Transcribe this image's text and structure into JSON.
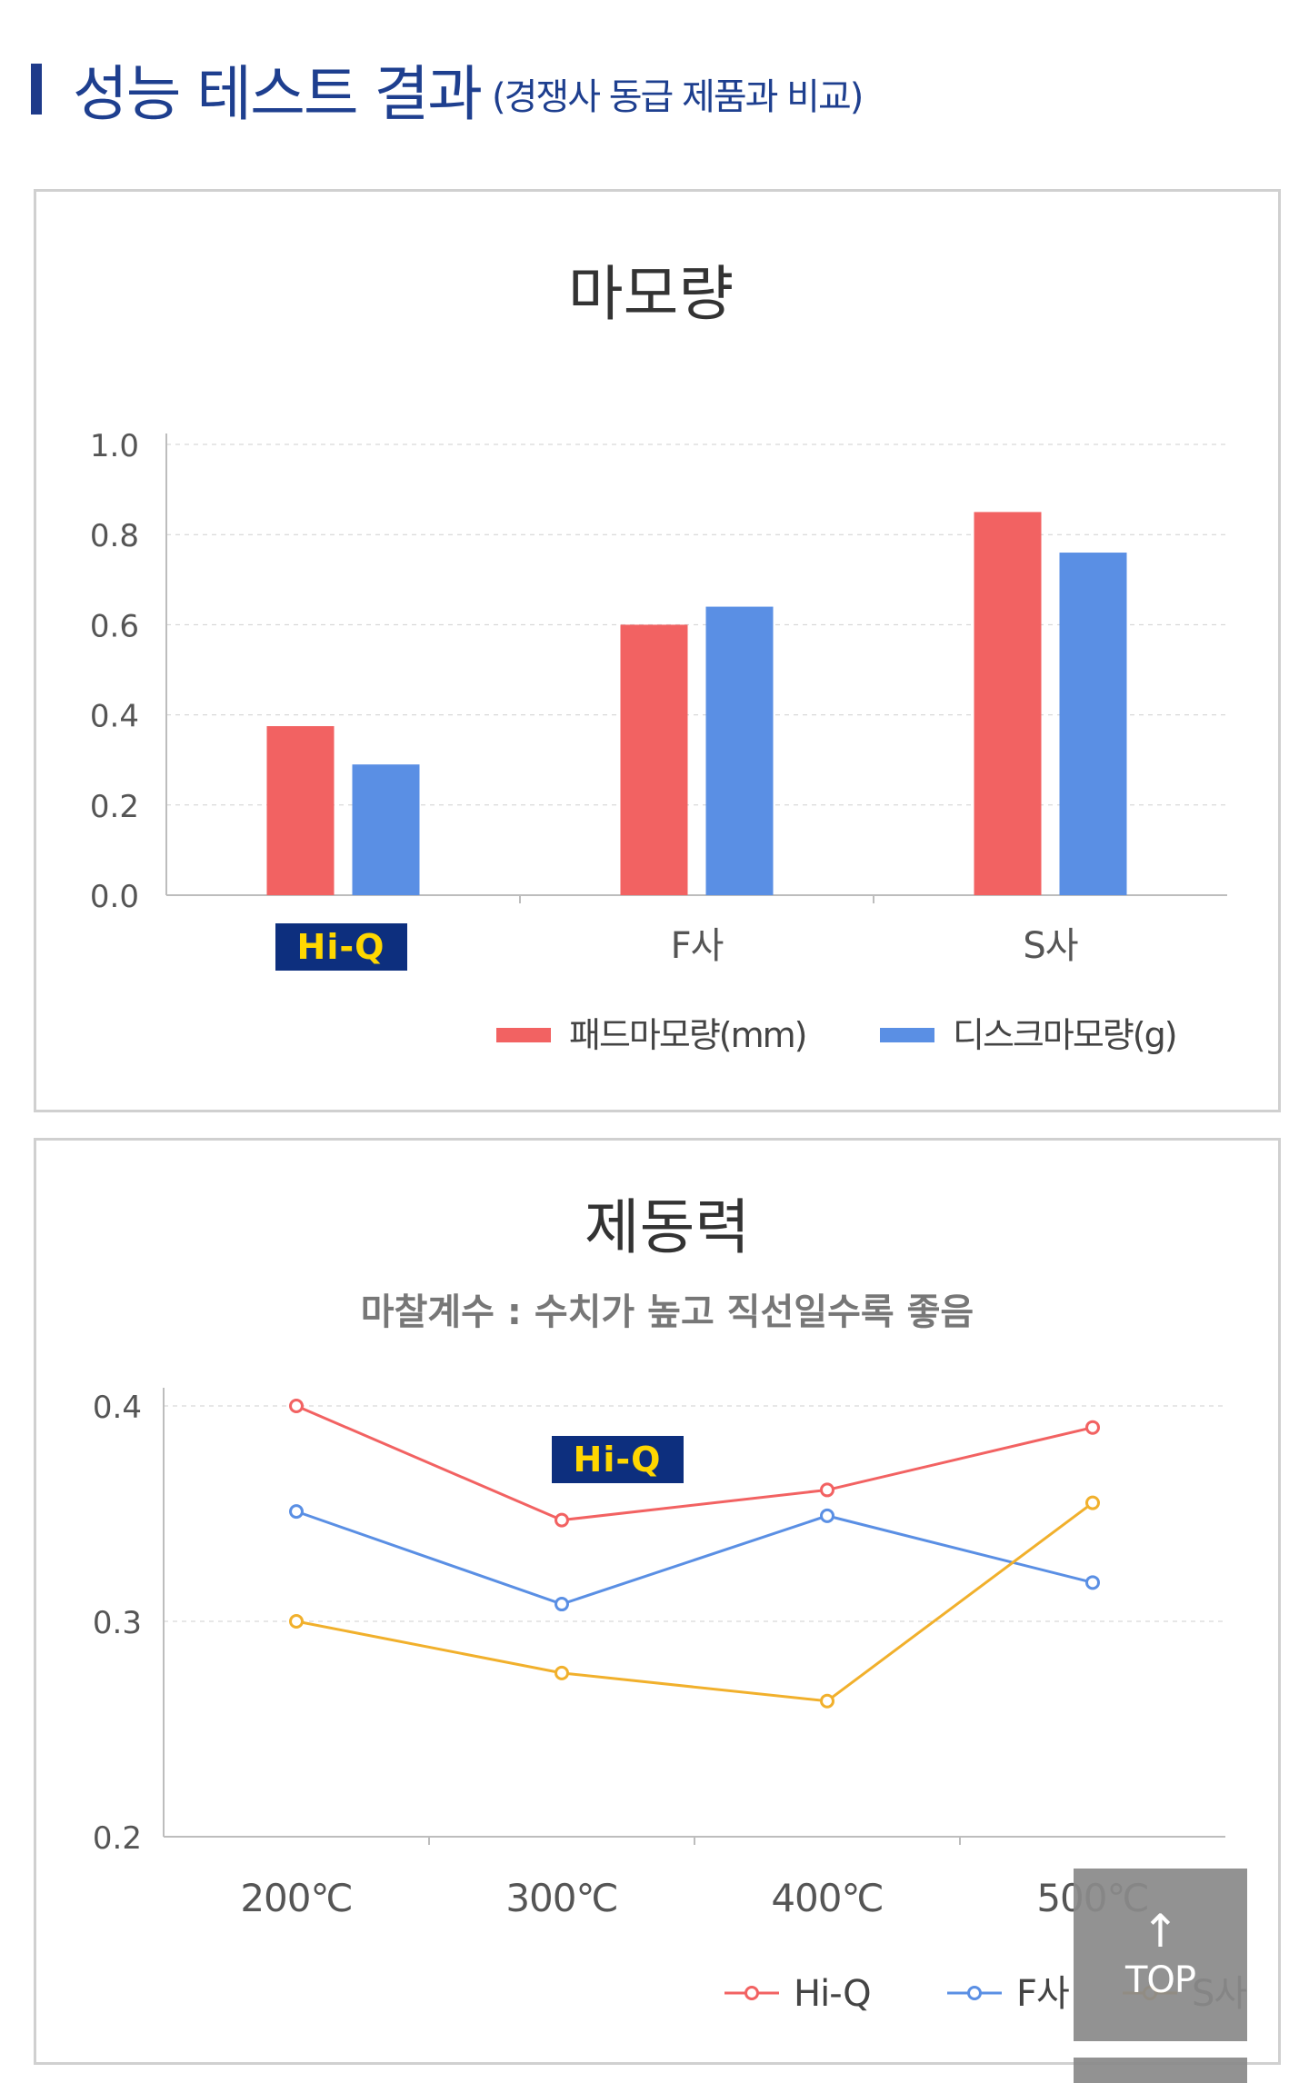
{
  "section": {
    "title": "성능 테스트 결과",
    "subtitle": "(경쟁사 동급 제품과 비교)"
  },
  "wear_chart": {
    "title": "마모량",
    "legend": [
      "패드마모량(mm)",
      "디스크마모량(g)"
    ],
    "brand_label": "Hi-Q"
  },
  "brake_chart": {
    "title": "제동력",
    "subtitle": "마찰계수 : 수치가 높고 직선일수록 좋음",
    "brand_label": "Hi-Q"
  },
  "top_button": {
    "label": "TOP",
    "arrow": "↑"
  },
  "colors": {
    "red": "#f26262",
    "blue": "#5a8fe4",
    "orange": "#f1b02c",
    "navy": "#0d2f7e",
    "yellow": "#ffd700",
    "grid": "#cfcfcf",
    "axis": "#bdbdbd",
    "text": "#555555"
  },
  "chart_data": [
    {
      "type": "bar",
      "title": "마모량",
      "categories": [
        "Hi-Q",
        "F사",
        "S사"
      ],
      "series": [
        {
          "name": "패드마모량(mm)",
          "values": [
            0.375,
            0.6,
            0.85
          ],
          "color": "#f26262"
        },
        {
          "name": "디스크마모량(g)",
          "values": [
            0.29,
            0.64,
            0.76
          ],
          "color": "#5a8fe4"
        }
      ],
      "ylim": [
        0,
        1.0
      ],
      "yticks": [
        "0.0",
        "0.2",
        "0.4",
        "0.6",
        "0.8",
        "1.0"
      ],
      "grid": true,
      "legend_position": "bottom-right"
    },
    {
      "type": "line",
      "title": "제동력",
      "subtitle": "마찰계수 : 수치가 높고 직선일수록 좋음",
      "categories": [
        "200℃",
        "300℃",
        "400℃",
        "500℃"
      ],
      "series": [
        {
          "name": "Hi-Q",
          "values": [
            0.4,
            0.347,
            0.361,
            0.39
          ],
          "color": "#f26262"
        },
        {
          "name": "F사",
          "values": [
            0.351,
            0.308,
            0.349,
            0.318
          ],
          "color": "#5a8fe4"
        },
        {
          "name": "S사",
          "values": [
            0.3,
            0.276,
            0.263,
            0.355
          ],
          "color": "#f1b02c"
        }
      ],
      "ylim": [
        0.2,
        0.4
      ],
      "yticks": [
        "0.2",
        "0.3",
        "0.4"
      ],
      "grid": true,
      "legend_position": "bottom-right"
    }
  ]
}
